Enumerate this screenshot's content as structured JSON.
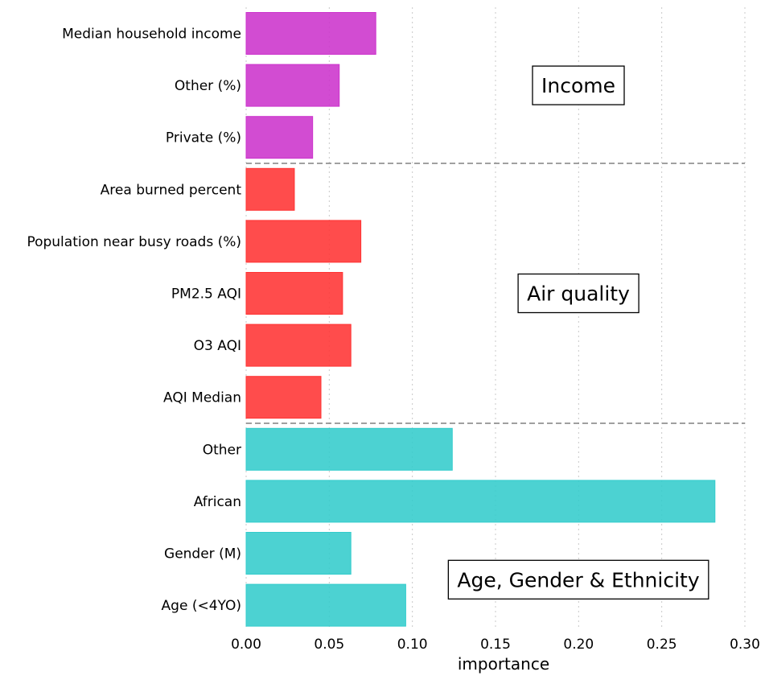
{
  "chart_data": {
    "type": "bar",
    "orientation": "horizontal",
    "xlabel": "importance",
    "xlim": [
      0,
      0.3
    ],
    "xticks": [
      "0.00",
      "0.05",
      "0.10",
      "0.15",
      "0.20",
      "0.25",
      "0.30"
    ],
    "xtick_values": [
      0,
      0.05,
      0.1,
      0.15,
      0.2,
      0.25,
      0.3
    ],
    "grid": "vertical dotted",
    "groups": [
      {
        "name": "Income",
        "color": "#cc33cc",
        "categories": [
          "Median household income",
          "Other (%)",
          "Private (%)"
        ],
        "values": [
          0.078,
          0.056,
          0.04
        ]
      },
      {
        "name": "Air quality",
        "color": "#ff3333",
        "categories": [
          "Area burned percent",
          "Population near busy roads (%)",
          "PM2.5 AQI",
          "O3 AQI",
          "AQI Median"
        ],
        "values": [
          0.029,
          0.069,
          0.058,
          0.063,
          0.045
        ]
      },
      {
        "name": "Age, Gender & Ethnicity",
        "color": "#33cccc",
        "categories": [
          "Other",
          "African",
          "Gender (M)",
          "Age (<4YO)"
        ],
        "values": [
          0.124,
          0.282,
          0.063,
          0.096
        ]
      }
    ]
  }
}
